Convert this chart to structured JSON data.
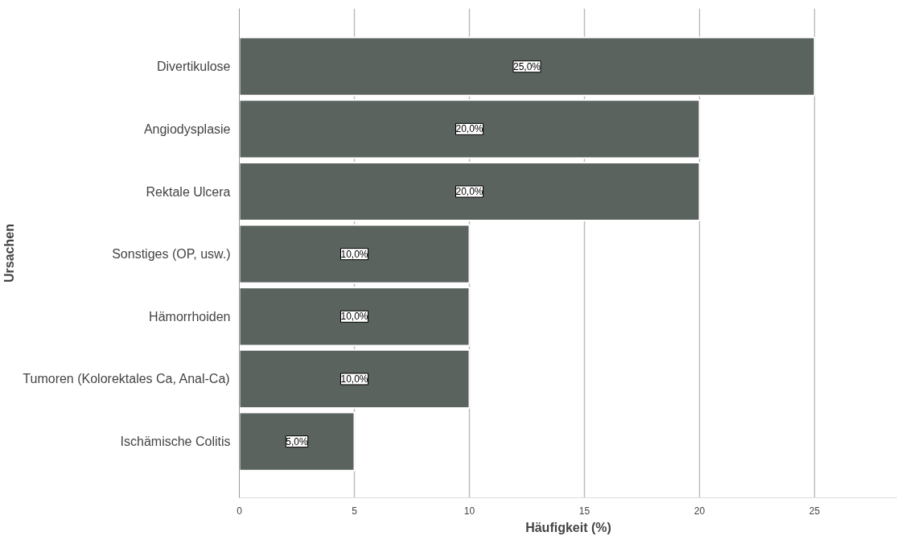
{
  "chart_data": {
    "type": "bar",
    "orientation": "horizontal",
    "xlabel": "Häufigkeit (%)",
    "ylabel": "Ursachen",
    "categories": [
      "Divertikulose",
      "Angiodysplasie",
      "Rektale Ulcera",
      "Sonstiges (OP, usw.)",
      "Hämorrhoiden",
      "Tumoren (Kolorektales Ca, Anal-Ca)",
      "Ischämische Colitis"
    ],
    "values": [
      25,
      20,
      20,
      10,
      10,
      10,
      5
    ],
    "value_labels": [
      "25,0%",
      "20,0%",
      "20,0%",
      "10,0%",
      "10,0%",
      "10,0%",
      "5,0%"
    ],
    "color": "#5a635d",
    "xlim": [
      0,
      28.6
    ],
    "xticks": [
      0,
      5,
      10,
      15,
      20,
      25
    ],
    "grid": "x"
  }
}
